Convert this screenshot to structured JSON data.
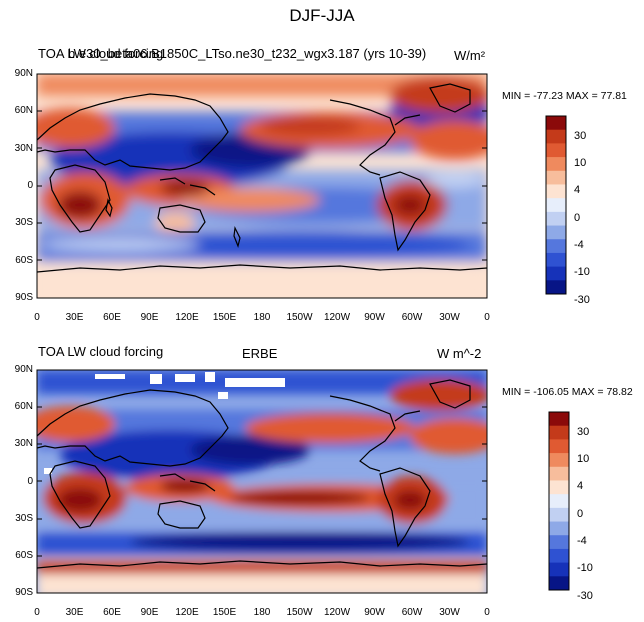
{
  "figure_title": "DJF-JJA",
  "panels": [
    {
      "id": "top",
      "left_title": "TOA LW cloud forcing",
      "center_title": "b.e30_beta06.B1850C_LTso.ne30_t232_wgx3.187 (yrs 10-39)",
      "units": "W/m²",
      "stats": "MIN = -77.23 MAX =  77.81"
    },
    {
      "id": "bottom",
      "left_title": "TOA LW cloud forcing",
      "center_title": "ERBE",
      "units": "W m^-2",
      "stats": "MIN = -106.05 MAX =  78.82"
    }
  ],
  "lat_labels": [
    "90N",
    "60N",
    "30N",
    "0",
    "30S",
    "60S",
    "90S"
  ],
  "lon_labels": [
    "0",
    "30E",
    "60E",
    "90E",
    "120E",
    "150E",
    "180",
    "150W",
    "120W",
    "90W",
    "60W",
    "30W",
    "0"
  ],
  "colorbar": {
    "labels": [
      "30",
      "10",
      "4",
      "0",
      "-4",
      "-10",
      "-30"
    ],
    "colors": [
      "#8b0a0a",
      "#c43a1a",
      "#e05a32",
      "#ef8a5e",
      "#f7bd9c",
      "#fde3d2",
      "#e7eefb",
      "#c1d0f2",
      "#8ea9e7",
      "#5577dd",
      "#2f52d2",
      "#1632b9",
      "#071586"
    ]
  }
}
